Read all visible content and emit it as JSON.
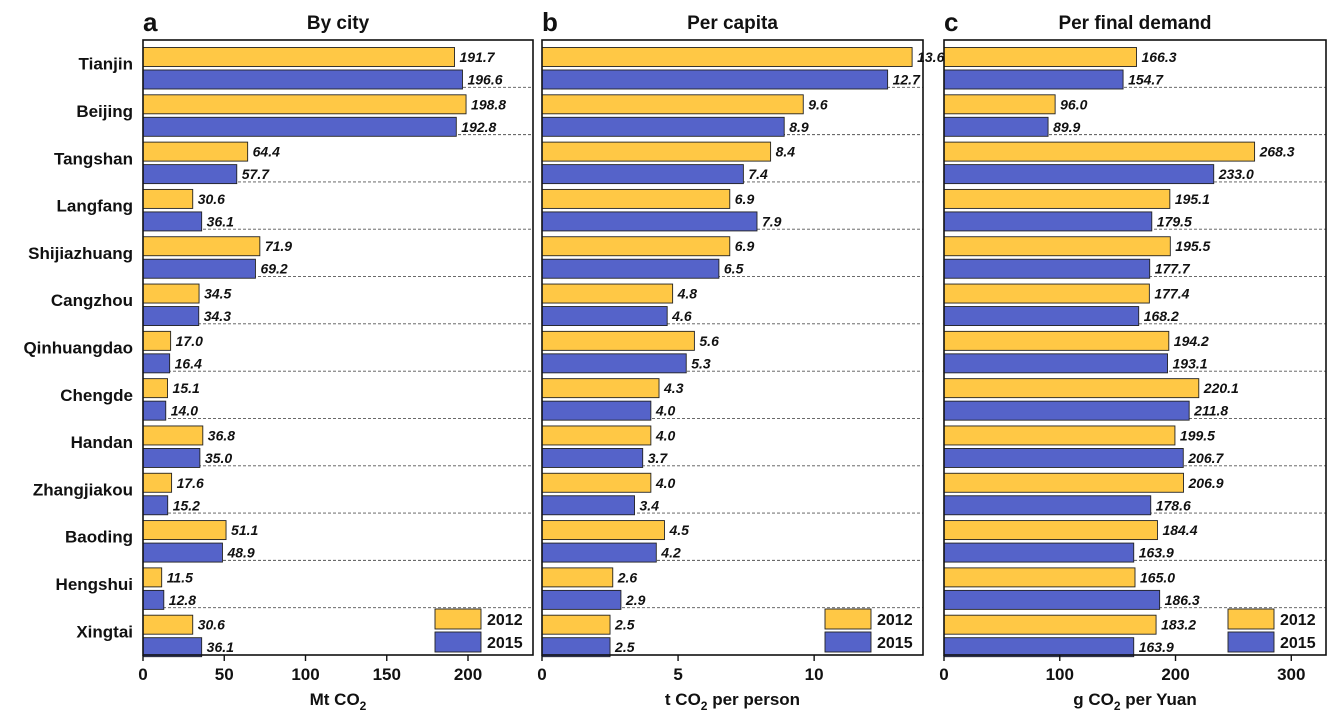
{
  "figure": {
    "categories": [
      "Tianjin",
      "Beijing",
      "Tangshan",
      "Langfang",
      "Shijiazhuang",
      "Cangzhou",
      "Qinhuangdao",
      "Chengde",
      "Handan",
      "Zhangjiakou",
      "Baoding",
      "Hengshui",
      "Xingtai"
    ]
  },
  "colors": {
    "2012": "#FFC845",
    "2015": "#5563C9"
  },
  "chart_data": [
    {
      "type": "bar",
      "orientation": "horizontal",
      "panel_letter": "a",
      "title": "By city",
      "xlabel": "Mt CO",
      "xlabel_sub": "2",
      "xlim": [
        0,
        240
      ],
      "xticks": [
        0,
        50,
        100,
        150,
        200
      ],
      "categories": [
        "Tianjin",
        "Beijing",
        "Tangshan",
        "Langfang",
        "Shijiazhuang",
        "Cangzhou",
        "Qinhuangdao",
        "Chengde",
        "Handan",
        "Zhangjiakou",
        "Baoding",
        "Hengshui",
        "Xingtai"
      ],
      "series": [
        {
          "name": "2012",
          "values": [
            191.7,
            198.8,
            64.4,
            30.6,
            71.9,
            34.5,
            17.0,
            15.1,
            36.8,
            17.6,
            51.1,
            11.5,
            30.6
          ],
          "labels": [
            "191.7",
            "198.8",
            "64.4",
            "30.6",
            "71.9",
            "34.5",
            "17.0",
            "15.1",
            "36.8",
            "17.6",
            "51.1",
            "11.5",
            "30.6"
          ]
        },
        {
          "name": "2015",
          "values": [
            196.6,
            192.8,
            57.7,
            36.1,
            69.2,
            34.3,
            16.4,
            14.0,
            35.0,
            15.2,
            48.9,
            12.8,
            36.1
          ],
          "labels": [
            "196.6",
            "192.8",
            "57.7",
            "36.1",
            "69.2",
            "34.3",
            "16.4",
            "14.0",
            "35.0",
            "15.2",
            "48.9",
            "12.8",
            "36.1"
          ]
        }
      ],
      "legend_position": "bottom-right"
    },
    {
      "type": "bar",
      "orientation": "horizontal",
      "panel_letter": "b",
      "title": "Per capita",
      "xlabel": "t CO",
      "xlabel_sub": "2",
      "xlabel_after": " per person",
      "xlim": [
        0,
        14
      ],
      "xticks": [
        0,
        5,
        10
      ],
      "categories": [
        "Tianjin",
        "Beijing",
        "Tangshan",
        "Langfang",
        "Shijiazhuang",
        "Cangzhou",
        "Qinhuangdao",
        "Chengde",
        "Handan",
        "Zhangjiakou",
        "Baoding",
        "Hengshui",
        "Xingtai"
      ],
      "series": [
        {
          "name": "2012",
          "values": [
            13.6,
            9.6,
            8.4,
            6.9,
            6.9,
            4.8,
            5.6,
            4.3,
            4.0,
            4.0,
            4.5,
            2.6,
            2.5
          ],
          "labels": [
            "13.6",
            "9.6",
            "8.4",
            "6.9",
            "6.9",
            "4.8",
            "5.6",
            "4.3",
            "4.0",
            "4.0",
            "4.5",
            "2.6",
            "2.5"
          ]
        },
        {
          "name": "2015",
          "values": [
            12.7,
            8.9,
            7.4,
            7.9,
            6.5,
            4.6,
            5.3,
            4.0,
            3.7,
            3.4,
            4.2,
            2.9,
            2.5
          ],
          "labels": [
            "12.7",
            "8.9",
            "7.4",
            "7.9",
            "6.5",
            "4.6",
            "5.3",
            "4.0",
            "3.7",
            "3.4",
            "4.2",
            "2.9",
            "2.5"
          ]
        }
      ],
      "legend_position": "bottom-right"
    },
    {
      "type": "bar",
      "orientation": "horizontal",
      "panel_letter": "c",
      "title": "Per final demand",
      "xlabel": "g CO",
      "xlabel_sub": "2",
      "xlabel_after": " per Yuan",
      "xlim": [
        0,
        330
      ],
      "xticks": [
        0,
        100,
        200,
        300
      ],
      "categories": [
        "Tianjin",
        "Beijing",
        "Tangshan",
        "Langfang",
        "Shijiazhuang",
        "Cangzhou",
        "Qinhuangdao",
        "Chengde",
        "Handan",
        "Zhangjiakou",
        "Baoding",
        "Hengshui",
        "Xingtai"
      ],
      "series": [
        {
          "name": "2012",
          "values": [
            166.3,
            96.0,
            268.3,
            195.1,
            195.5,
            177.4,
            194.2,
            220.1,
            199.5,
            206.9,
            184.4,
            165.0,
            183.2
          ],
          "labels": [
            "166.3",
            "96.0",
            "268.3",
            "195.1",
            "195.5",
            "177.4",
            "194.2",
            "220.1",
            "199.5",
            "206.9",
            "184.4",
            "165.0",
            "183.2"
          ]
        },
        {
          "name": "2015",
          "values": [
            154.7,
            89.9,
            233.0,
            179.5,
            177.7,
            168.2,
            193.1,
            211.8,
            206.7,
            178.6,
            163.9,
            186.3,
            163.9
          ],
          "labels": [
            "154.7",
            "89.9",
            "233.0",
            "179.5",
            "177.7",
            "168.2",
            "193.1",
            "211.8",
            "206.7",
            "178.6",
            "163.9",
            "186.3",
            "163.9"
          ]
        }
      ],
      "legend_position": "bottom-right"
    }
  ]
}
